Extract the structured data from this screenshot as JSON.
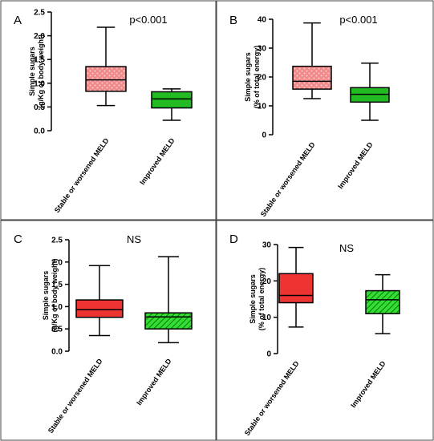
{
  "chart_data": [
    {
      "type": "box",
      "panel_label": "A",
      "annotation": "p<0.001",
      "ylabel_lines": [
        "Simple sugars",
        "(g/Kg of body weight)"
      ],
      "ylim": [
        0,
        2.5
      ],
      "yticks": [
        "0.0",
        "0.5",
        "1.0",
        "1.5",
        "2.0",
        "2.5"
      ],
      "categories": [
        "Stable or worsened MELD",
        "Improved MELD"
      ],
      "boxes": [
        {
          "min": 0.53,
          "q1": 0.83,
          "median": 1.07,
          "q3": 1.35,
          "max": 2.18,
          "fill": "#f08a8a",
          "pattern": "dots"
        },
        {
          "min": 0.22,
          "q1": 0.48,
          "median": 0.67,
          "q3": 0.82,
          "max": 0.88,
          "fill": "#22bb22",
          "pattern": "none"
        }
      ]
    },
    {
      "type": "box",
      "panel_label": "B",
      "annotation": "p<0.001",
      "ylabel_lines": [
        "Simple sugars",
        "(% of total energy)"
      ],
      "ylim": [
        0,
        40
      ],
      "yticks": [
        "0",
        "10",
        "20",
        "30",
        "40"
      ],
      "categories": [
        "Stable or worsened MELD",
        "Improved MELD"
      ],
      "boxes": [
        {
          "min": 12.5,
          "q1": 15.8,
          "median": 18.5,
          "q3": 23.7,
          "max": 38.7,
          "fill": "#f08a8a",
          "pattern": "dots"
        },
        {
          "min": 5.0,
          "q1": 11.3,
          "median": 14.0,
          "q3": 16.3,
          "max": 24.8,
          "fill": "#22bb22",
          "pattern": "none"
        }
      ]
    },
    {
      "type": "box",
      "panel_label": "C",
      "annotation": "NS",
      "ylabel_lines": [
        "Simple sugars",
        "(g/Kg of body weight)"
      ],
      "ylim": [
        0,
        2.5
      ],
      "yticks": [
        "0.0",
        "0.5",
        "1.0",
        "1.5",
        "2.0",
        "2.5"
      ],
      "categories": [
        "Stable or worsened MELD",
        "Improved MELD"
      ],
      "boxes": [
        {
          "min": 0.35,
          "q1": 0.76,
          "median": 0.93,
          "q3": 1.15,
          "max": 1.92,
          "fill": "#ee3333",
          "pattern": "none"
        },
        {
          "min": 0.19,
          "q1": 0.5,
          "median": 0.77,
          "q3": 0.86,
          "max": 2.12,
          "fill": "#33dd33",
          "pattern": "hatch"
        }
      ]
    },
    {
      "type": "box",
      "panel_label": "D",
      "annotation": "NS",
      "ylabel_lines": [
        "Simple sugars",
        "(% of total energy)"
      ],
      "ylim": [
        0,
        30
      ],
      "yticks": [
        "0",
        "10",
        "20",
        "30"
      ],
      "categories": [
        "Stable or worsened MELD",
        "Improved MELD"
      ],
      "boxes": [
        {
          "min": 7.3,
          "q1": 14.0,
          "median": 16.0,
          "q3": 22.0,
          "max": 29.2,
          "fill": "#ee3333",
          "pattern": "none"
        },
        {
          "min": 5.5,
          "q1": 11.0,
          "median": 14.8,
          "q3": 17.3,
          "max": 21.7,
          "fill": "#33dd33",
          "pattern": "hatch"
        }
      ]
    }
  ]
}
